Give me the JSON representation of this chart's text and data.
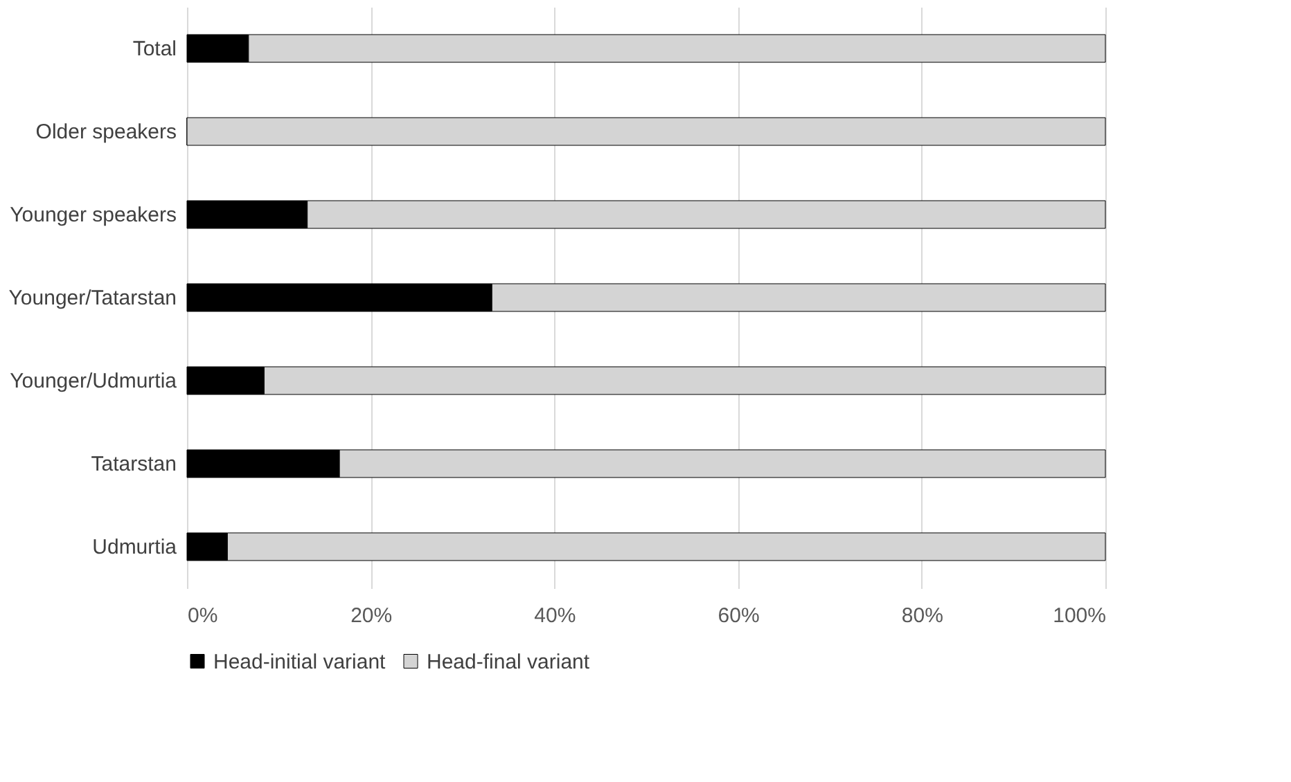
{
  "chart_data": {
    "type": "bar",
    "orientation": "horizontal",
    "stacked": true,
    "categories": [
      "Total",
      "Older speakers",
      "Younger speakers",
      "Younger/Tatarstan",
      "Younger/Udmurtia",
      "Tatarstan",
      "Udmurtia"
    ],
    "series": [
      {
        "name": "Head-initial variant",
        "color": "#000000",
        "values": [
          6.7,
          0,
          13.1,
          33.2,
          8.4,
          16.6,
          4.4
        ]
      },
      {
        "name": "Head-final variant",
        "color": "#d4d4d4",
        "values": [
          93.3,
          100,
          86.9,
          66.8,
          91.6,
          83.4,
          95.6
        ]
      }
    ],
    "xlim": [
      0,
      100
    ],
    "xticks": [
      {
        "value": 0,
        "label": "0%"
      },
      {
        "value": 20,
        "label": "20%"
      },
      {
        "value": 40,
        "label": "40%"
      },
      {
        "value": 60,
        "label": "60%"
      },
      {
        "value": 80,
        "label": "80%"
      },
      {
        "value": 100,
        "label": "100%"
      }
    ],
    "grid": "x",
    "legend": "bottom"
  }
}
